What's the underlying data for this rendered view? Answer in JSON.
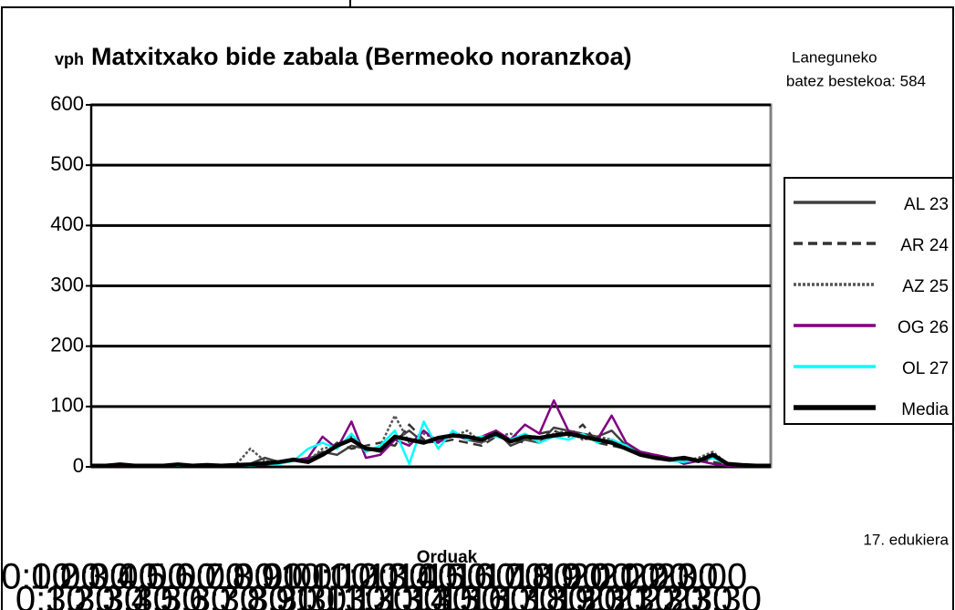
{
  "chart_data": {
    "type": "line",
    "title": "Matxitxako bide zabala (Bermeoko noranzkoa)",
    "y_label": "vph",
    "x_label": "Orduak",
    "annotations": [
      "Laneguneko",
      "batez bestekoa: 584",
      "17. edukiera"
    ],
    "categories": [
      "0:00",
      "0:30",
      "1:00",
      "1:30",
      "2:00",
      "2:30",
      "3:00",
      "3:30",
      "4:00",
      "4:30",
      "5:00",
      "5:30",
      "6:00",
      "6:30",
      "7:00",
      "7:30",
      "8:00",
      "8:30",
      "9:00",
      "9:30",
      "10:00",
      "10:30",
      "11:00",
      "11:30",
      "12:00",
      "12:30",
      "13:00",
      "13:30",
      "14:00",
      "14:30",
      "15:00",
      "15:30",
      "16:00",
      "16:30",
      "17:00",
      "17:30",
      "18:00",
      "18:30",
      "19:00",
      "19:30",
      "20:00",
      "20:30",
      "21:00",
      "21:30",
      "22:00",
      "22:30",
      "23:00",
      "23:30"
    ],
    "ylim": [
      0,
      600
    ],
    "yticks": [
      0,
      100,
      200,
      300,
      400,
      500,
      600
    ],
    "grid": true,
    "series": [
      {
        "name": "AL 23",
        "color": "#404040",
        "dash": "solid",
        "values": [
          3,
          2,
          3,
          2,
          3,
          2,
          3,
          2,
          2,
          3,
          2,
          5,
          15,
          8,
          10,
          12,
          25,
          20,
          35,
          30,
          25,
          45,
          60,
          40,
          42,
          55,
          45,
          40,
          60,
          35,
          45,
          40,
          65,
          60,
          55,
          50,
          60,
          35,
          25,
          15,
          10,
          12,
          8,
          15,
          4,
          3,
          2,
          2
        ]
      },
      {
        "name": "AR 24",
        "color": "#333333",
        "dash": "dashed",
        "values": [
          2,
          1,
          2,
          2,
          3,
          2,
          2,
          1,
          2,
          2,
          3,
          3,
          5,
          6,
          10,
          15,
          18,
          40,
          30,
          35,
          40,
          35,
          70,
          45,
          40,
          45,
          40,
          35,
          50,
          45,
          40,
          55,
          60,
          50,
          70,
          40,
          35,
          30,
          25,
          20,
          15,
          10,
          12,
          8,
          4,
          3,
          2,
          2
        ]
      },
      {
        "name": "AZ 25",
        "color": "#555555",
        "dash": "dotted",
        "values": [
          2,
          2,
          3,
          1,
          2,
          2,
          3,
          2,
          2,
          2,
          3,
          30,
          10,
          6,
          12,
          10,
          30,
          35,
          50,
          25,
          35,
          85,
          40,
          55,
          45,
          50,
          60,
          40,
          50,
          55,
          45,
          40,
          55,
          60,
          45,
          50,
          45,
          35,
          20,
          18,
          12,
          10,
          15,
          25,
          5,
          3,
          2,
          2
        ]
      },
      {
        "name": "OG 26",
        "color": "#800080",
        "dash": "solid",
        "values": [
          1,
          2,
          2,
          1,
          2,
          1,
          2,
          2,
          3,
          2,
          2,
          3,
          4,
          6,
          10,
          15,
          50,
          30,
          75,
          15,
          20,
          45,
          35,
          60,
          40,
          55,
          45,
          50,
          60,
          45,
          70,
          55,
          110,
          60,
          50,
          45,
          85,
          40,
          25,
          20,
          15,
          5,
          10,
          5,
          2,
          1,
          1,
          1
        ]
      },
      {
        "name": "OL 27",
        "color": "#00ffff",
        "dash": "solid",
        "values": [
          2,
          2,
          3,
          2,
          2,
          2,
          2,
          2,
          3,
          2,
          2,
          2,
          5,
          5,
          10,
          30,
          40,
          30,
          55,
          25,
          35,
          60,
          5,
          75,
          30,
          60,
          45,
          50,
          50,
          45,
          55,
          40,
          50,
          45,
          55,
          40,
          45,
          35,
          20,
          15,
          10,
          8,
          12,
          15,
          4,
          2,
          2,
          2
        ]
      },
      {
        "name": "Media",
        "color": "#000000",
        "dash": "bold",
        "values": [
          2,
          2,
          4,
          2,
          2,
          2,
          4,
          2,
          3,
          2,
          3,
          4,
          6,
          8,
          12,
          8,
          20,
          35,
          45,
          30,
          28,
          50,
          45,
          40,
          48,
          52,
          50,
          45,
          55,
          42,
          50,
          48,
          52,
          55,
          50,
          45,
          40,
          30,
          20,
          15,
          12,
          15,
          10,
          20,
          5,
          3,
          2,
          2
        ]
      }
    ]
  }
}
